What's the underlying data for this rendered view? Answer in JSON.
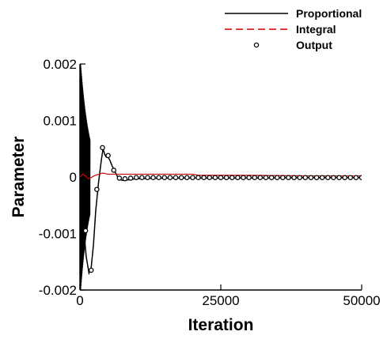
{
  "chart_data": {
    "type": "line",
    "xlabel": "Iteration",
    "ylabel": "Parameter",
    "xlim": [
      0,
      50000
    ],
    "ylim": [
      -0.002,
      0.002
    ],
    "xticks": [
      0,
      25000,
      50000
    ],
    "xtick_labels": [
      "0",
      "25000",
      "50000"
    ],
    "yticks": [
      -0.002,
      -0.001,
      0,
      0.001,
      0.002
    ],
    "ytick_labels": [
      "-0.002",
      "-0.001",
      "0",
      "0.001",
      "0.002"
    ],
    "grid": false,
    "legend_position": "top-right",
    "series": [
      {
        "name": "Proportional",
        "style": "solid",
        "color": "#000000",
        "x": [
          0,
          600,
          1100,
          1600,
          2000,
          2400,
          2800,
          3300,
          3800,
          4100,
          4400,
          4700,
          5000,
          5300,
          5700,
          6200,
          6800,
          7500,
          8500,
          10000,
          15000,
          20000,
          30000,
          40000,
          50000
        ],
        "y": [
          0,
          -0.0008,
          -0.0014,
          -0.0017,
          -0.0016,
          -0.0012,
          -0.0006,
          -0.0001,
          0.0003,
          0.0005,
          0.0004,
          0.00035,
          0.00035,
          0.0003,
          0.0002,
          0.0001,
          -2e-05,
          -6e-05,
          -5e-05,
          -3e-05,
          -2e-05,
          -2e-05,
          -2e-05,
          -1e-05,
          -1e-05
        ]
      },
      {
        "name": "Integral",
        "style": "dashed",
        "color": "#cc0000",
        "x": [
          0,
          500,
          1000,
          1500,
          2000,
          2500,
          3000,
          3500,
          4000,
          4500,
          5000,
          6000,
          7000,
          8000,
          10000,
          15000,
          20000,
          21000,
          30000,
          40000,
          50000
        ],
        "y": [
          0,
          5e-05,
          2e-05,
          -3e-05,
          -1e-05,
          2e-05,
          4e-05,
          5e-05,
          7e-05,
          6e-05,
          5e-05,
          5e-05,
          5e-05,
          5e-05,
          5e-05,
          5e-05,
          5e-05,
          3e-05,
          3e-05,
          2e-05,
          2e-05
        ]
      },
      {
        "name": "Output",
        "style": "circles",
        "color": "#000000",
        "x": [
          1000,
          2000,
          3000,
          4000,
          5000,
          6000,
          7000,
          8000,
          9000,
          10000,
          11000,
          12000,
          13000,
          14000,
          15000,
          16000,
          17000,
          18000,
          19000,
          20000,
          21000,
          22000,
          23000,
          24000,
          25000,
          26000,
          27000,
          28000,
          29000,
          30000,
          31000,
          32000,
          33000,
          34000,
          35000,
          36000,
          37000,
          38000,
          39000,
          40000,
          41000,
          42000,
          43000,
          44000,
          45000,
          46000,
          47000,
          48000,
          49000,
          50000
        ],
        "y": [
          -0.00095,
          -0.00165,
          -0.00022,
          0.00052,
          0.00038,
          0.00012,
          -2e-05,
          -3e-05,
          -2e-05,
          -1e-05,
          -1e-05,
          -1e-05,
          -1e-05,
          -1e-05,
          -1e-05,
          -1e-05,
          -1e-05,
          -1e-05,
          -1e-05,
          -1e-05,
          -1e-05,
          -1e-05,
          -1e-05,
          -1e-05,
          -1e-05,
          -1e-05,
          -1e-05,
          -1e-05,
          -1e-05,
          -1e-05,
          -1e-05,
          -1e-05,
          -1e-05,
          -1e-05,
          -1e-05,
          -1e-05,
          -1e-05,
          -1e-05,
          -1e-05,
          -1e-05,
          -1e-05,
          -1e-05,
          -1e-05,
          -1e-05,
          -1e-05,
          -1e-05,
          -1e-05,
          -1e-05,
          -1e-05,
          -1e-05
        ]
      }
    ]
  }
}
